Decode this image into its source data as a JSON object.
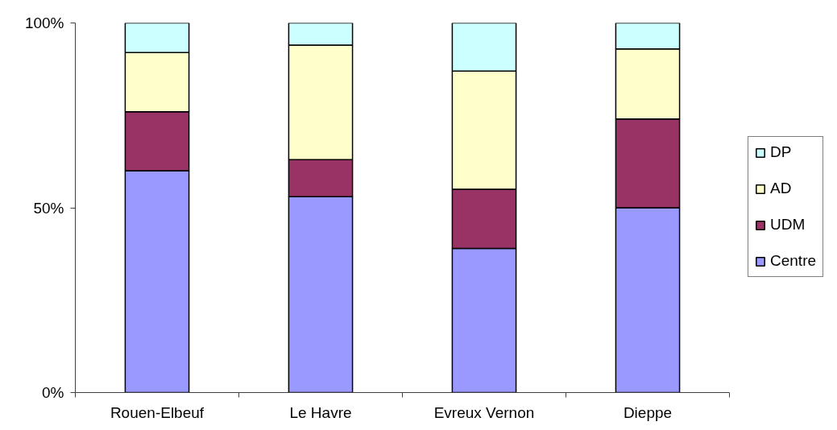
{
  "chart_data": {
    "type": "bar",
    "stacked": true,
    "categories": [
      "Rouen-Elbeuf",
      "Le Havre",
      "Evreux Vernon",
      "Dieppe"
    ],
    "series": [
      {
        "name": "Centre",
        "color": "#9999ff",
        "values": [
          60,
          53,
          39,
          50
        ]
      },
      {
        "name": "UDM",
        "color": "#993366",
        "values": [
          16,
          10,
          16,
          24
        ]
      },
      {
        "name": "AD",
        "color": "#ffffcc",
        "values": [
          16,
          31,
          32,
          19
        ]
      },
      {
        "name": "DP",
        "color": "#ccffff",
        "values": [
          8,
          6,
          13,
          7
        ]
      }
    ],
    "ylim": [
      0,
      100
    ],
    "yticks": [
      {
        "value": 0,
        "label": "0%"
      },
      {
        "value": 50,
        "label": "50%"
      },
      {
        "value": 100,
        "label": "100%"
      }
    ],
    "grid": false,
    "legend": "right"
  }
}
